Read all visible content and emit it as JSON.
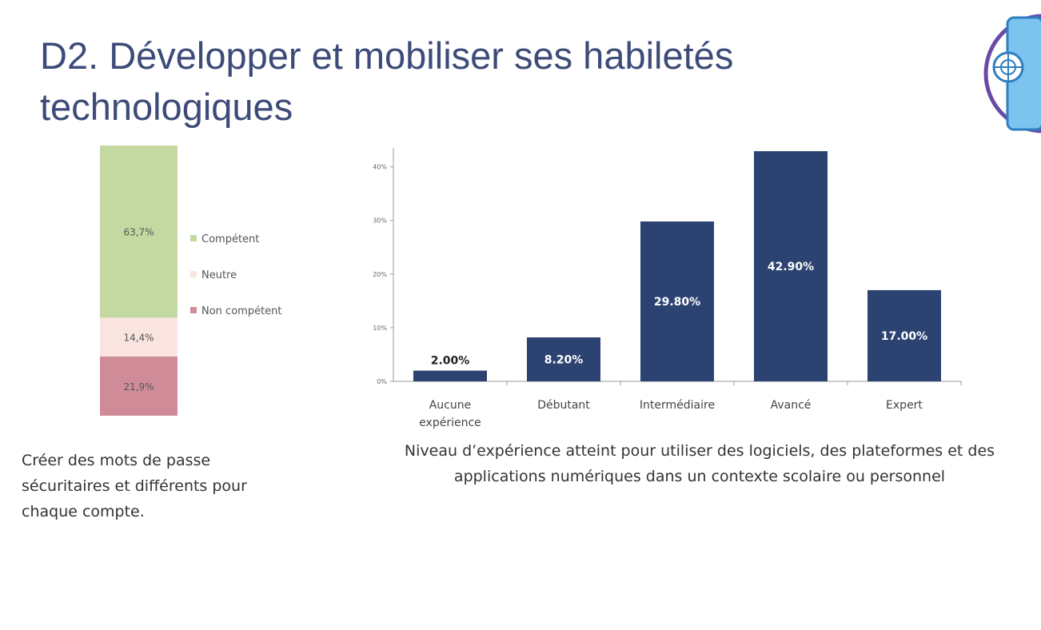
{
  "title": {
    "line1": "D2. Développer et mobiliser ses habiletés",
    "line2": "technologiques"
  },
  "logo": {
    "icon": "globe-phone-icon"
  },
  "left_caption": "Créer des mots de passe sécuritaires et différents pour chaque compte.",
  "right_caption": "Niveau d’expérience atteint pour utiliser des logiciels, des plateformes et des applications numériques dans un contexte scolaire ou personnel",
  "chart_data": [
    {
      "type": "bar",
      "stacked": true,
      "categories": [
        ""
      ],
      "series": [
        {
          "name": "Non compétent",
          "values": [
            21.9
          ],
          "label": "21,9%",
          "color": "#cf8c98"
        },
        {
          "name": "Neutre",
          "values": [
            14.4
          ],
          "label": "14,4%",
          "color": "#f9e4df"
        },
        {
          "name": "Compétent",
          "values": [
            63.7
          ],
          "label": "63,7%",
          "color": "#c4d9a1"
        }
      ],
      "ylim": [
        0,
        100
      ],
      "legend_position": "right",
      "legend_order": [
        "Compétent",
        "Neutre",
        "Non compétent"
      ]
    },
    {
      "type": "bar",
      "categories": [
        "Aucune expérience",
        "Débutant",
        "Intermédiaire",
        "Avancé",
        "Expert"
      ],
      "values": [
        2.0,
        8.2,
        29.8,
        42.9,
        17.0
      ],
      "data_labels": [
        "2.00%",
        "8.20%",
        "29.80%",
        "42.90%",
        "17.00%"
      ],
      "yticks": [
        0,
        10,
        20,
        30,
        40
      ],
      "ytick_labels": [
        "0%",
        "10%",
        "20%",
        "30%",
        "40%"
      ],
      "ylim": [
        0,
        45
      ],
      "bar_color": "#2c4372",
      "grid": false
    }
  ]
}
